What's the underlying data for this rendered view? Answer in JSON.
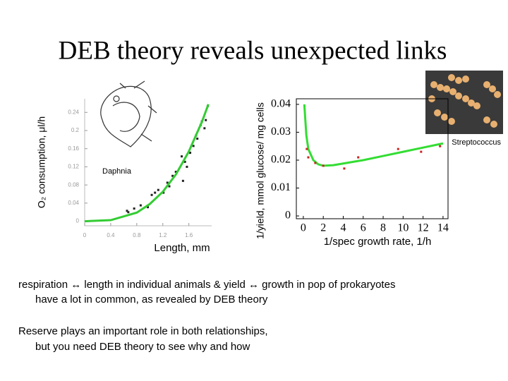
{
  "title": "DEB theory reveals unexpected links",
  "chart_data": [
    {
      "type": "scatter",
      "annotation": "Daphnia",
      "x_label": "Length, mm",
      "y_label": "O₂ consumption, μl/h",
      "xlim": [
        0,
        1.95
      ],
      "ylim": [
        -0.01,
        0.27
      ],
      "xticks": [
        0,
        0.4,
        0.8,
        1.2,
        1.6
      ],
      "yticks": [
        0,
        0.04,
        0.08,
        0.12,
        0.16,
        0.2,
        0.24
      ],
      "series": [
        {
          "kind": "points",
          "color": "#222222",
          "x": [
            0.65,
            0.67,
            0.76,
            0.86,
            0.97,
            1.03,
            1.08,
            1.13,
            1.21,
            1.27,
            1.3,
            1.35,
            1.4,
            1.49,
            1.51,
            1.54,
            1.57,
            1.62,
            1.67,
            1.71,
            1.73,
            1.78,
            1.8,
            1.84,
            1.86,
            1.89
          ],
          "values": [
            0.023,
            0.02,
            0.028,
            0.035,
            0.031,
            0.058,
            0.063,
            0.069,
            0.063,
            0.085,
            0.077,
            0.1,
            0.109,
            0.143,
            0.089,
            0.131,
            0.12,
            0.151,
            0.166,
            0.189,
            0.182,
            0.212,
            0.22,
            0.205,
            0.223,
            0.254
          ]
        },
        {
          "kind": "line",
          "color": "#33cc33",
          "x": [
            0,
            0.4,
            0.8,
            1.0,
            1.2,
            1.4,
            1.6,
            1.8,
            1.9
          ],
          "values": [
            0,
            0.0024,
            0.019,
            0.038,
            0.065,
            0.103,
            0.154,
            0.219,
            0.258
          ]
        }
      ]
    },
    {
      "type": "scatter",
      "annotation": "Streptococcus",
      "x_label": "1/spec growth rate, 1/h",
      "y_label": "1/yield, mmol glucose/ mg cells",
      "xlim": [
        -0.7,
        14.5
      ],
      "ylim": [
        -0.001,
        0.042
      ],
      "xticks": [
        0,
        2,
        4,
        6,
        8,
        10,
        12,
        14
      ],
      "yticks": [
        0,
        0.01,
        0.02,
        0.03,
        0.04
      ],
      "series": [
        {
          "kind": "line",
          "color": "#33dd33",
          "x": [
            0.1,
            0.3,
            0.5,
            1,
            1.5,
            2,
            3,
            4,
            6,
            8,
            10,
            12,
            14
          ],
          "values": [
            0.04,
            0.029,
            0.024,
            0.02,
            0.0185,
            0.018,
            0.0182,
            0.0188,
            0.02,
            0.0215,
            0.023,
            0.0245,
            0.026
          ]
        },
        {
          "kind": "points",
          "color": "#cc2222",
          "x": [
            0.35,
            0.5,
            1.2,
            2.0,
            4.1,
            5.5,
            9.5,
            11.8,
            13.7
          ],
          "values": [
            0.024,
            0.021,
            0.019,
            0.018,
            0.017,
            0.021,
            0.024,
            0.023,
            0.025
          ]
        }
      ]
    }
  ],
  "text": [
    "respiration ↔ length in individual animals   &  yield ↔ growth in pop of prokaryotes",
    "have a lot in common, as revealed by DEB theory",
    "Reserve plays an important role in both relationships,",
    "but you need DEB theory to see why and how"
  ]
}
